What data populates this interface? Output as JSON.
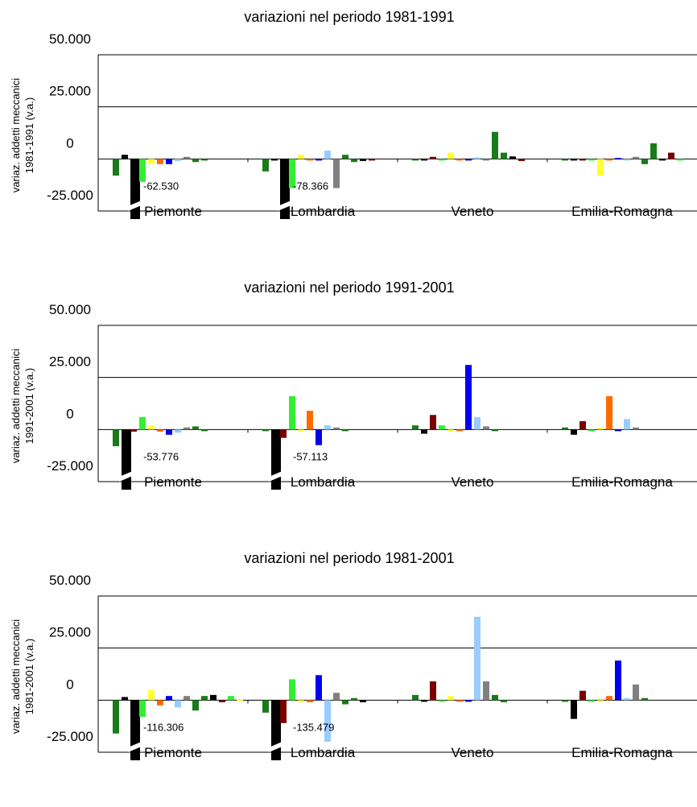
{
  "colors": [
    "#1a7a1a",
    "#1a7a1a",
    "#000000",
    "#7a0000",
    "#33ee33",
    "#ffff33",
    "#ff6a00",
    "#0000ee",
    "#99ccff",
    "#808080"
  ],
  "chart_data": [
    {
      "type": "bar",
      "title": "variazioni nel periodo 1981-1991",
      "ylabel_lines": [
        "variaz. addetti meccanici",
        "1981-1991 (v.a.)"
      ],
      "ylim": [
        -25000,
        50000
      ],
      "yticks": [
        "50.000",
        "25.000",
        "0",
        "-25.000"
      ],
      "categories": [
        "Piemonte",
        "Lombardia",
        "Veneto",
        "Emilia-Romagna"
      ],
      "values": [
        [
          -8000,
          2000,
          -62530,
          -11000,
          -2500,
          -2500,
          -2500,
          -1000,
          1000,
          -1500,
          -500
        ],
        [
          -6000,
          -500,
          -78366,
          -14000,
          2000,
          -500,
          -500,
          4000,
          -14000,
          2000,
          -1500,
          -1000,
          -500
        ],
        [
          0,
          0,
          1000,
          0,
          3000,
          0,
          -200,
          700,
          -500,
          13000,
          3000,
          1200,
          -1000
        ],
        [
          0,
          0,
          -200,
          0,
          -8000,
          0,
          500,
          0,
          1000,
          -2500,
          7500,
          0,
          3000,
          0
        ]
      ],
      "data_labels": [
        "-62.530",
        "-78.366"
      ]
    },
    {
      "type": "bar",
      "title": "variazioni nel periodo 1991-2001",
      "ylabel_lines": [
        "variaz. addetti meccanici",
        "1991-2001 (v.a.)"
      ],
      "ylim": [
        -25000,
        50000
      ],
      "yticks": [
        "50.000",
        "25.000",
        "0",
        "-25.000"
      ],
      "categories": [
        "Piemonte",
        "Lombardia",
        "Veneto",
        "Emilia-Romagna"
      ],
      "values": [
        [
          -8000,
          -53776,
          -1000,
          6000,
          2000,
          -1000,
          -2500,
          -1500,
          1000,
          1500,
          -500
        ],
        [
          -500,
          -57113,
          -4000,
          16000,
          -500,
          9000,
          -7500,
          2000,
          1000,
          -500
        ],
        [
          2000,
          -2000,
          7000,
          2000,
          -1000,
          -500,
          31000,
          6000,
          1500,
          0
        ],
        [
          1000,
          -2500,
          4000,
          0,
          1000,
          16000,
          0,
          5000,
          1000
        ]
      ],
      "data_labels": [
        "-53.776",
        "-57.113"
      ]
    },
    {
      "type": "bar",
      "title": "variazioni nel periodo 1981-2001",
      "ylabel_lines": [
        "variaz. addetti meccanici",
        "1981-2001 (v.a.)"
      ],
      "ylim": [
        -25000,
        50000
      ],
      "yticks": [
        "50.000",
        "25.000",
        "0",
        "-25.000"
      ],
      "categories": [
        "Piemonte",
        "Lombardia",
        "Veneto",
        "Emilia-Romagna"
      ],
      "values": [
        [
          -16000,
          1500,
          -116306,
          -8000,
          5000,
          -2500,
          2000,
          -3500,
          2000,
          -5000,
          2000,
          2500,
          -1000,
          2000,
          500
        ],
        [
          -6000,
          -135479,
          -11000,
          10000,
          -1000,
          -1000,
          12000,
          -20000,
          3500,
          -2000,
          1000,
          -1000
        ],
        [
          2500,
          0,
          9000,
          0,
          2000,
          -200,
          0,
          40000,
          9000,
          2500,
          -1000
        ],
        [
          0,
          -9000,
          4500,
          0,
          0,
          2000,
          19000,
          1000,
          7500,
          1000
        ]
      ],
      "data_labels": [
        "-116.306",
        "-135.479"
      ]
    }
  ]
}
